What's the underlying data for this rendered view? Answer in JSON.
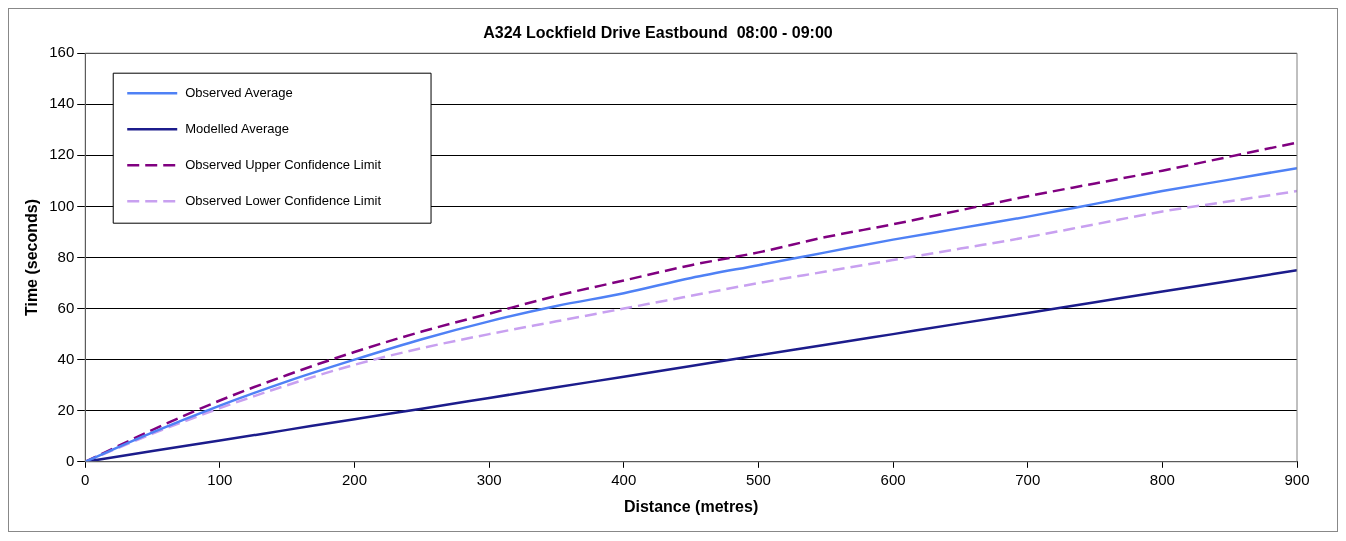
{
  "chart_data": {
    "type": "line",
    "title": "A324 Lockfield Drive Eastbound  08:00 - 09:00",
    "xlabel": "Distance (metres)",
    "ylabel": "Time (seconds)",
    "x": [
      0,
      50,
      100,
      150,
      200,
      250,
      300,
      350,
      400,
      450,
      500,
      550,
      600,
      650,
      700,
      750,
      800,
      850,
      900
    ],
    "xlim": [
      0,
      900
    ],
    "xticks": [
      0,
      100,
      200,
      300,
      400,
      500,
      600,
      700,
      800,
      900
    ],
    "ylim": [
      0,
      160
    ],
    "yticks": [
      0,
      20,
      40,
      60,
      80,
      100,
      120,
      140,
      160
    ],
    "grid": "y",
    "legend": "top left",
    "marker": "none",
    "series": [
      {
        "name": "Observed Average",
        "color": "#4f81f5",
        "line_style": "solid",
        "values": [
          0,
          11.5,
          22,
          31.5,
          40,
          48,
          55,
          61,
          66,
          72,
          77,
          82,
          87,
          91.5,
          96,
          101,
          106,
          110.5,
          115
        ]
      },
      {
        "name": "Modelled Average",
        "color": "#1c1c8c",
        "line_style": "solid",
        "values": [
          0,
          4.2,
          8.3,
          12.5,
          16.7,
          20.8,
          25,
          29.2,
          33.3,
          37.5,
          41.7,
          45.8,
          50,
          54.2,
          58.3,
          62.5,
          66.7,
          70.8,
          75
        ]
      },
      {
        "name": "Observed Upper Confidence Limit",
        "color": "#800080",
        "line_style": "dashed",
        "values": [
          0,
          12.5,
          24,
          34,
          43,
          51,
          58,
          65,
          71,
          77,
          82,
          88,
          93,
          98.5,
          104,
          109,
          114,
          119.5,
          125
        ]
      },
      {
        "name": "Observed Lower Confidence Limit",
        "color": "#c8a0f0",
        "line_style": "dashed",
        "values": [
          0,
          11,
          21,
          30,
          38,
          44.5,
          50,
          55,
          60,
          65,
          70,
          74.5,
          79,
          83.5,
          88,
          93,
          98,
          102,
          106
        ]
      }
    ]
  }
}
